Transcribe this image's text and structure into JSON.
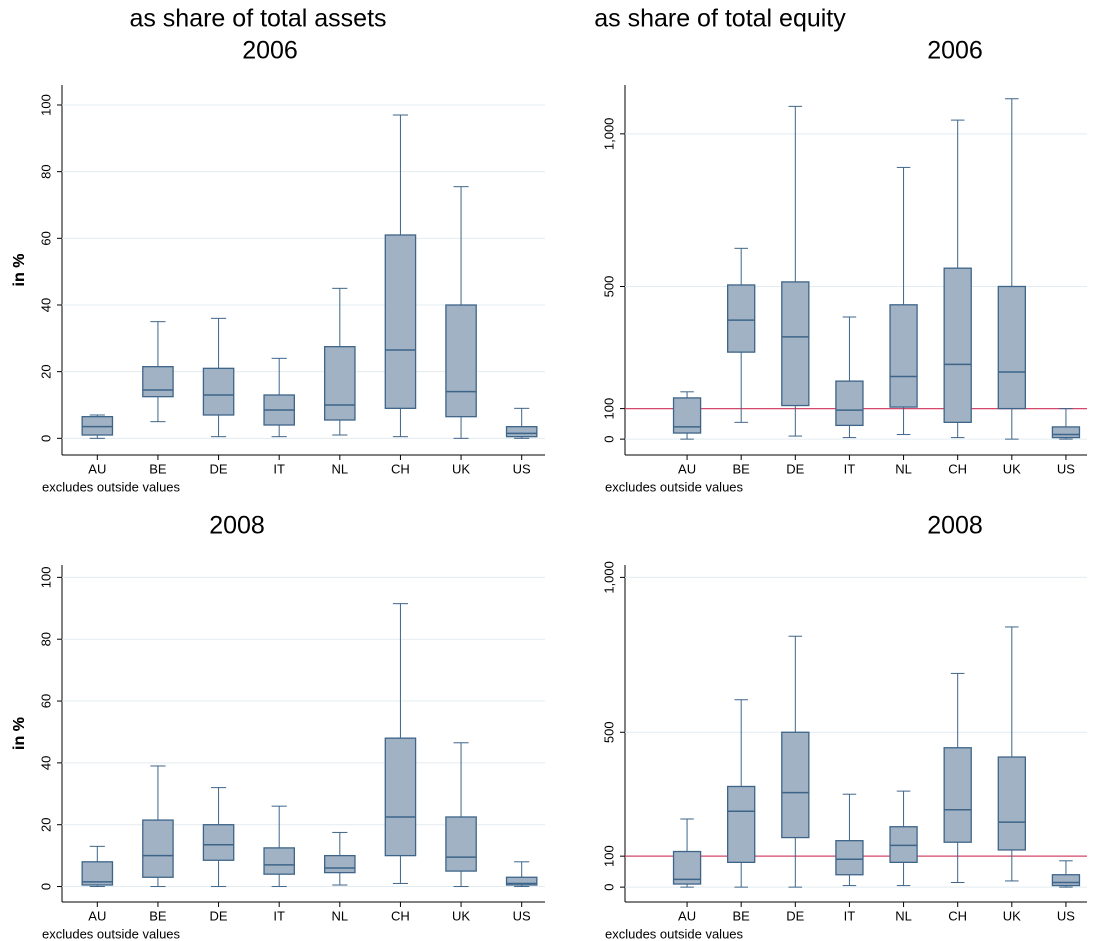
{
  "headers": [
    "as share of total assets",
    "as share of total equity"
  ],
  "chart_data": [
    {
      "type": "box",
      "title": "2006",
      "ylabel": "in %",
      "note": "excludes outside values",
      "categories": [
        "AU",
        "BE",
        "DE",
        "IT",
        "NL",
        "CH",
        "UK",
        "US"
      ],
      "whisker_low": [
        0,
        5,
        0.5,
        0.5,
        1,
        0.5,
        0,
        0
      ],
      "q1": [
        1,
        12.5,
        7,
        4,
        5.5,
        9,
        6.5,
        0.5
      ],
      "median": [
        3.5,
        14.5,
        13,
        8.5,
        10,
        26.5,
        14,
        1.5
      ],
      "q3": [
        6.5,
        21.5,
        21,
        13,
        27.5,
        61,
        40,
        3.5
      ],
      "whisker_high": [
        7,
        35,
        36,
        24,
        45,
        97,
        75.5,
        9
      ],
      "ylim": [
        -5,
        106
      ],
      "yticks": [
        0,
        20,
        40,
        60,
        80,
        100
      ],
      "grid": true,
      "color": "#a0b2c3",
      "edge_color": "#3e6589"
    },
    {
      "type": "box",
      "title": "2006",
      "ylabel": "in %",
      "note": "excludes outside values",
      "categories": [
        "AU",
        "BE",
        "DE",
        "IT",
        "NL",
        "CH",
        "UK",
        "US"
      ],
      "whisker_low": [
        0,
        55,
        10,
        5,
        15,
        5,
        0,
        0
      ],
      "q1": [
        20,
        285,
        110,
        45,
        105,
        55,
        100,
        5
      ],
      "median": [
        40,
        390,
        335,
        95,
        205,
        245,
        220,
        15
      ],
      "q3": [
        135,
        505,
        515,
        190,
        440,
        560,
        500,
        40
      ],
      "whisker_high": [
        155,
        625,
        1090,
        400,
        890,
        1045,
        1115,
        100
      ],
      "ylim": [
        -52,
        1160
      ],
      "yticks": [
        0,
        100,
        500,
        {
          "value": 1000,
          "label": "1,000"
        }
      ],
      "grid": true,
      "color": "#a0b2c3",
      "edge_color": "#3e6589",
      "reference_line": {
        "value": 100,
        "color": "#d6476b"
      }
    },
    {
      "type": "box",
      "title": "2008",
      "ylabel": "in %",
      "note": "excludes outside values",
      "categories": [
        "AU",
        "BE",
        "DE",
        "IT",
        "NL",
        "CH",
        "UK",
        "US"
      ],
      "whisker_low": [
        0,
        0,
        0,
        0,
        0.5,
        1,
        0,
        0
      ],
      "q1": [
        0.5,
        3,
        8.5,
        4,
        4.5,
        10,
        5,
        0.5
      ],
      "median": [
        1.5,
        10,
        13.5,
        7,
        6,
        22.5,
        9.5,
        1
      ],
      "q3": [
        8,
        21.5,
        20,
        12.5,
        10,
        48,
        22.5,
        3
      ],
      "whisker_high": [
        13,
        39,
        32,
        26,
        17.5,
        91.5,
        46.5,
        8
      ],
      "ylim": [
        -5,
        104
      ],
      "yticks": [
        0,
        20,
        40,
        60,
        80,
        100
      ],
      "grid": true,
      "color": "#a0b2c3",
      "edge_color": "#3e6589"
    },
    {
      "type": "box",
      "title": "2008",
      "ylabel": "in %",
      "note": "excludes outside values",
      "categories": [
        "AU",
        "BE",
        "DE",
        "IT",
        "NL",
        "CH",
        "UK",
        "US"
      ],
      "whisker_low": [
        0,
        0,
        0,
        5,
        5,
        15,
        20,
        0
      ],
      "q1": [
        10,
        80,
        160,
        40,
        80,
        145,
        120,
        5
      ],
      "median": [
        25,
        245,
        305,
        90,
        135,
        250,
        210,
        15
      ],
      "q3": [
        115,
        325,
        500,
        150,
        195,
        450,
        420,
        40
      ],
      "whisker_high": [
        220,
        605,
        810,
        300,
        310,
        690,
        840,
        85
      ],
      "ylim": [
        -48,
        1040
      ],
      "yticks": [
        0,
        100,
        500,
        {
          "value": 1000,
          "label": "1,000"
        }
      ],
      "grid": true,
      "color": "#a0b2c3",
      "edge_color": "#3e6589",
      "reference_line": {
        "value": 100,
        "color": "#d6476b"
      }
    }
  ]
}
